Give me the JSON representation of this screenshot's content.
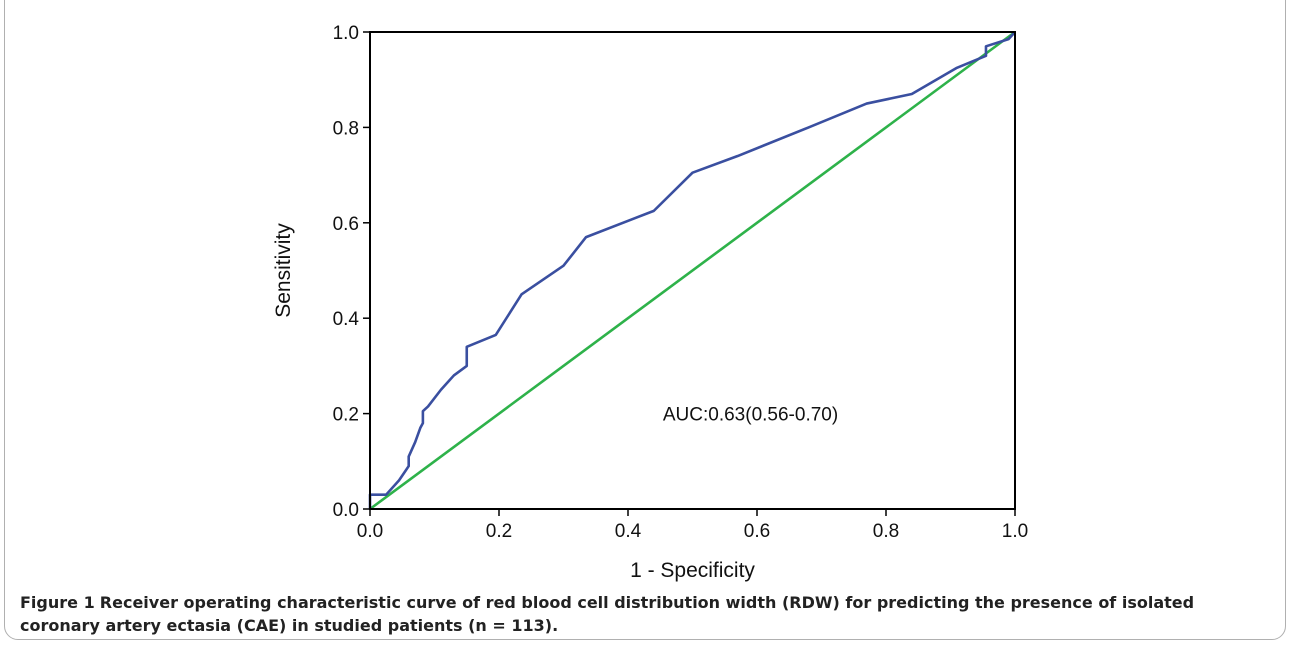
{
  "figure": {
    "label": "Figure 1",
    "caption": "Receiver operating characteristic curve of red blood cell distribution width (RDW) for predicting the presence of isolated coronary artery ectasia (CAE) in studied patients (n = 113)."
  },
  "chart_data": {
    "type": "line",
    "xlabel": "1 - Specificity",
    "ylabel": "Sensitivity",
    "xlim": [
      0.0,
      1.0
    ],
    "ylim": [
      0.0,
      1.0
    ],
    "xticks": [
      "0.0",
      "0.2",
      "0.4",
      "0.6",
      "0.8",
      "1.0"
    ],
    "yticks": [
      "0.0",
      "0.2",
      "0.4",
      "0.6",
      "0.8",
      "1.0"
    ],
    "grid": false,
    "annotation": "AUC:0.63(0.56-0.70)",
    "colors": {
      "roc": "#3a4fa0",
      "reference": "#2eb24a"
    },
    "series": [
      {
        "x": [
          0.0,
          0.0,
          0.025,
          0.045,
          0.055,
          0.06,
          0.06,
          0.07,
          0.078,
          0.082,
          0.082,
          0.09,
          0.11,
          0.13,
          0.15,
          0.15,
          0.195,
          0.235,
          0.3,
          0.335,
          0.44,
          0.5,
          0.57,
          0.68,
          0.77,
          0.84,
          0.91,
          0.955,
          0.955,
          0.99,
          1.0
        ],
        "y": [
          0.0,
          0.03,
          0.03,
          0.06,
          0.08,
          0.09,
          0.11,
          0.14,
          0.17,
          0.18,
          0.205,
          0.215,
          0.25,
          0.28,
          0.3,
          0.34,
          0.365,
          0.45,
          0.51,
          0.57,
          0.625,
          0.705,
          0.74,
          0.8,
          0.85,
          0.87,
          0.925,
          0.95,
          0.97,
          0.985,
          1.0
        ]
      },
      {
        "x": [
          0.0,
          1.0
        ],
        "y": [
          0.0,
          1.0
        ]
      }
    ]
  }
}
